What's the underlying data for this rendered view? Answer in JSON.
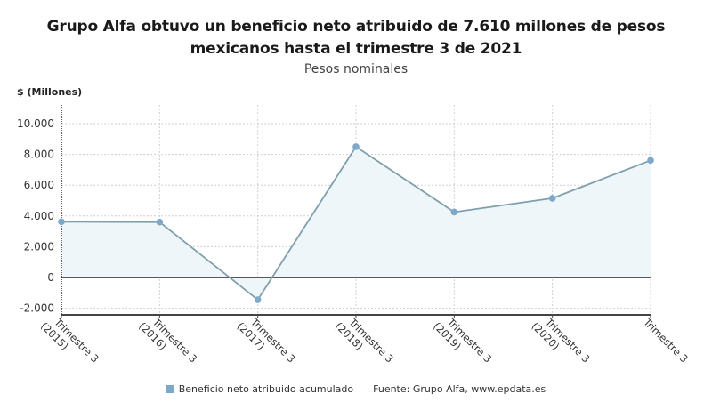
{
  "chart_data": {
    "type": "area",
    "title": "Grupo Alfa obtuvo un beneficio neto atribuido de 7.610 millones de pesos mexicanos hasta el trimestre 3 de 2021",
    "subtitle": "Pesos nominales",
    "ylabel": "$ (Millones)",
    "xlabel": "",
    "categories": [
      [
        "Trimestre 3",
        "(2015)"
      ],
      [
        "Trimestre 3",
        "(2016)"
      ],
      [
        "Trimestre 3",
        "(2017)"
      ],
      [
        "Trimestre 3",
        "(2018)"
      ],
      [
        "Trimestre 3",
        "(2019)"
      ],
      [
        "Trimestre 3",
        "(2020)"
      ],
      [
        "Trimestre 3",
        ""
      ]
    ],
    "series": [
      {
        "name": "Beneficio neto atribuido acumulado",
        "color": "#7ea8c9",
        "values": [
          3620,
          3600,
          -1450,
          8500,
          4250,
          5150,
          7610
        ]
      }
    ],
    "yticks": [
      -2000,
      0,
      2000,
      4000,
      6000,
      8000,
      10000
    ],
    "ytick_labels": [
      "-2.000",
      "0",
      "2.000",
      "4.000",
      "6.000",
      "8.000",
      "10.000"
    ],
    "ylim": [
      -2450,
      11000
    ],
    "grid": true,
    "legend_position": "bottom"
  },
  "legend": {
    "series_label": "Beneficio neto atribuido acumulado",
    "source": "Fuente: Grupo Alfa, www.epdata.es"
  },
  "colors": {
    "line": "#7f9fae",
    "marker": "#7ea8c9",
    "area": "#eef6fa",
    "grid": "#cfcfcf",
    "axis": "#333333"
  }
}
